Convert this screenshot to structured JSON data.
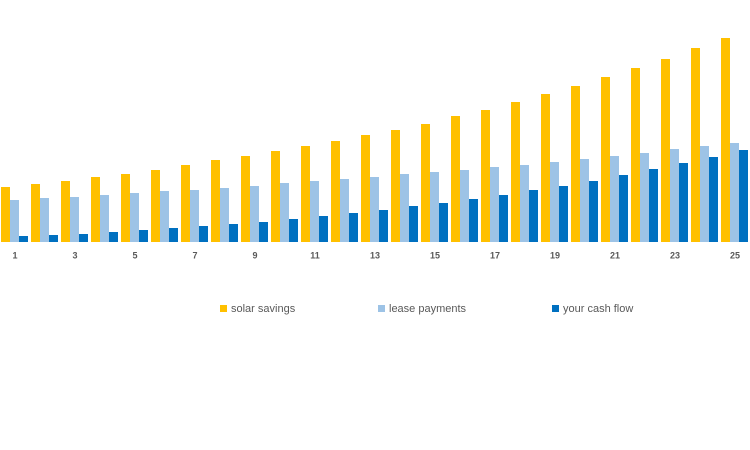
{
  "chart_data": {
    "type": "bar",
    "categories": [
      "1",
      null,
      "3",
      null,
      "5",
      null,
      "7",
      null,
      "9",
      null,
      "11",
      null,
      "13",
      null,
      "15",
      null,
      "17",
      null,
      "19",
      null,
      "21",
      null,
      "23",
      null,
      "25"
    ],
    "series": [
      {
        "name": "solar savings",
        "color": "#ffc000",
        "values": [
          55,
          58,
          61,
          65,
          68,
          72,
          77,
          82,
          86,
          91,
          96,
          101,
          107,
          112,
          118,
          126,
          132,
          140,
          148,
          156,
          165,
          174,
          183,
          194,
          204
        ]
      },
      {
        "name": "lease payments",
        "color": "#9dc3e6",
        "values": [
          42,
          44,
          45,
          47,
          49,
          51,
          52,
          54,
          56,
          59,
          61,
          63,
          65,
          68,
          70,
          72,
          75,
          77,
          80,
          83,
          86,
          89,
          93,
          96,
          99
        ]
      },
      {
        "name": "your cash flow",
        "color": "#0070c0",
        "values": [
          6,
          7,
          8,
          10,
          12,
          14,
          16,
          18,
          20,
          23,
          26,
          29,
          32,
          36,
          39,
          43,
          47,
          52,
          56,
          61,
          67,
          73,
          79,
          85,
          92
        ]
      }
    ],
    "legend": "bottom"
  }
}
